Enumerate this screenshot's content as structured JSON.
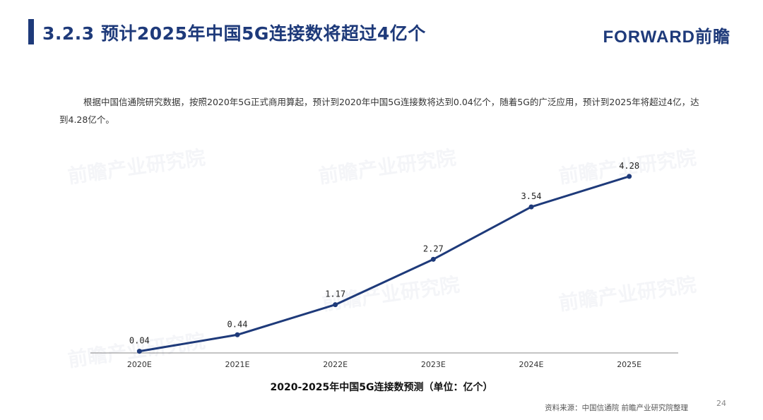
{
  "header": {
    "title": "3.2.3 预计2025年中国5G连接数将超过4亿个",
    "brand": "FORWARD前瞻"
  },
  "description": "根据中国信通院研究数据，按照2020年5G正式商用算起，预计到2020年中国5G连接数将达到0.04亿个，随着5G的广泛应用，预计到2025年将超过4亿，达到4.28亿个。",
  "chart_data": {
    "type": "line",
    "title": "2020-2025年中国5G连接数预测（单位：亿个）",
    "categories": [
      "2020E",
      "2021E",
      "2022E",
      "2023E",
      "2024E",
      "2025E"
    ],
    "series": [
      {
        "values": [
          0.04,
          0.44,
          1.17,
          2.27,
          3.54,
          4.28
        ]
      }
    ],
    "data_labels": [
      "0.04",
      "0.44",
      "1.17",
      "2.27",
      "3.54",
      "4.28"
    ],
    "ylim": [
      0,
      4.5
    ],
    "grid": false,
    "legend": "none",
    "line_color": "#1e3a7a"
  },
  "footer": {
    "source": "资料来源：中国信通院 前瞻产业研究院整理",
    "page_number": "24"
  },
  "watermark_text": "前瞻产业研究院"
}
